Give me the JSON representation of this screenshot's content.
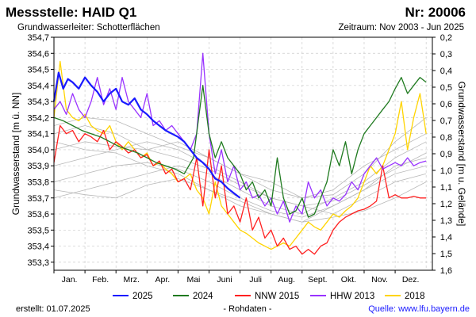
{
  "header": {
    "title": "Messstelle: HAID Q1",
    "number": "Nr: 20006",
    "aquifer": "Grundwasserleiter:   Schotterflächen",
    "period": "Zeitraum: Nov 2003 - Jun 2025"
  },
  "footer": {
    "created": "erstellt:  01.07.2025",
    "rawdata": "- Rohdaten -",
    "source": "Quelle: www.lfu.bayern.de"
  },
  "colors": {
    "2025": "#1a1aff",
    "2024": "#1f7a1f",
    "NNW 2015": "#ff2020",
    "HHW 2013": "#9933ff",
    "2018": "#ffd400",
    "other_years": "#b8b8b8",
    "grid": "#cccccc"
  },
  "chart_data": {
    "type": "line",
    "ylabel": "Grundwasserstand [m ü. NN]",
    "ylabel_right": "Grundwasserstand [m u. Gelände]",
    "ylim": [
      353.25,
      354.7
    ],
    "yticks": [
      353.3,
      353.4,
      353.5,
      353.6,
      353.7,
      353.8,
      353.9,
      354.0,
      354.1,
      354.2,
      354.3,
      354.4,
      354.5,
      354.6,
      354.7
    ],
    "ytick_labels": [
      "353,3",
      "353,4",
      "353,5",
      "353,6",
      "353,7",
      "353,8",
      "353,9",
      "354,0",
      "354,1",
      "354,2",
      "354,3",
      "354,4",
      "354,5",
      "354,6",
      "354,7"
    ],
    "ylim_right": [
      1.6,
      0.2
    ],
    "yticks_right": [
      0.2,
      0.3,
      0.4,
      0.5,
      0.6,
      0.7,
      0.8,
      0.9,
      1.0,
      1.1,
      1.2,
      1.3,
      1.4,
      1.5,
      1.6
    ],
    "ytick_labels_right": [
      "0,2",
      "0,3",
      "0,4",
      "0,5",
      "0,6",
      "0,7",
      "0,8",
      "0,9",
      "1,0",
      "1,1",
      "1,2",
      "1,3",
      "1,4",
      "1,5",
      "1,6"
    ],
    "xlim": [
      0,
      12.2
    ],
    "months": [
      "Jan.",
      "Feb.",
      "Mrz.",
      "Apr.",
      "Mai",
      "Juni",
      "Juli",
      "Aug.",
      "Sept.",
      "Okt.",
      "Nov.",
      "Dez."
    ],
    "legend_position": "bottom",
    "series": [
      {
        "name": "2025",
        "x": [
          0,
          0.15,
          0.3,
          0.45,
          0.6,
          0.8,
          1.0,
          1.2,
          1.4,
          1.6,
          1.8,
          2.0,
          2.2,
          2.4,
          2.6,
          2.8,
          3.0,
          3.2,
          3.4,
          3.6,
          3.8,
          4.0,
          4.2,
          4.4,
          4.6,
          4.8,
          5.0,
          5.2,
          5.4,
          5.6,
          5.8,
          6.0
        ],
        "y": [
          354.3,
          354.48,
          354.38,
          354.44,
          354.42,
          354.38,
          354.45,
          354.4,
          354.36,
          354.3,
          354.35,
          354.38,
          354.3,
          354.28,
          354.32,
          354.25,
          354.22,
          354.18,
          354.15,
          354.12,
          354.1,
          354.08,
          354.05,
          354.0,
          353.95,
          353.92,
          353.88,
          353.82,
          353.8,
          353.76,
          353.73,
          353.7
        ]
      },
      {
        "name": "2024",
        "x": [
          0,
          0.3,
          0.6,
          0.9,
          1.2,
          1.5,
          1.8,
          2.1,
          2.4,
          2.7,
          3.0,
          3.3,
          3.6,
          3.9,
          4.2,
          4.5,
          4.8,
          5.0,
          5.2,
          5.4,
          5.6,
          5.8,
          6.0,
          6.2,
          6.4,
          6.6,
          6.8,
          7.0,
          7.2,
          7.4,
          7.6,
          7.8,
          8.0,
          8.2,
          8.4,
          8.6,
          8.8,
          9.0,
          9.2,
          9.4,
          9.6,
          9.8,
          10.0,
          10.2,
          10.4,
          10.6,
          10.8,
          11.0,
          11.2,
          11.4,
          11.6,
          11.8,
          12.0
        ],
        "y": [
          354.2,
          354.18,
          354.15,
          354.12,
          354.1,
          354.08,
          354.05,
          354.02,
          354.0,
          353.98,
          353.95,
          353.92,
          353.9,
          353.88,
          353.85,
          353.95,
          354.4,
          354.1,
          353.95,
          354.05,
          353.95,
          353.9,
          353.85,
          353.75,
          353.8,
          353.7,
          353.75,
          353.65,
          353.95,
          353.7,
          353.6,
          353.62,
          353.7,
          353.58,
          353.6,
          353.7,
          353.8,
          354.0,
          353.9,
          354.05,
          353.85,
          354.0,
          354.1,
          354.15,
          354.2,
          354.25,
          354.3,
          354.38,
          354.45,
          354.35,
          354.4,
          354.45,
          354.42
        ]
      },
      {
        "name": "NNW 2015",
        "x": [
          0,
          0.2,
          0.4,
          0.6,
          0.8,
          1.0,
          1.2,
          1.4,
          1.6,
          1.8,
          2.0,
          2.2,
          2.4,
          2.6,
          2.8,
          3.0,
          3.2,
          3.4,
          3.6,
          3.8,
          4.0,
          4.2,
          4.4,
          4.6,
          4.8,
          5.0,
          5.2,
          5.4,
          5.6,
          5.8,
          6.0,
          6.2,
          6.4,
          6.6,
          6.8,
          7.0,
          7.2,
          7.4,
          7.6,
          7.8,
          8.0,
          8.2,
          8.4,
          8.6,
          8.8,
          9.0,
          9.2,
          9.4,
          9.6,
          9.8,
          10.0,
          10.2,
          10.4,
          10.6,
          10.8,
          11.0,
          11.2,
          11.4,
          11.6,
          11.8,
          12.0
        ],
        "y": [
          353.92,
          354.15,
          354.1,
          354.12,
          354.05,
          354.1,
          354.08,
          354.05,
          354.12,
          354.0,
          354.05,
          354.02,
          353.98,
          354.0,
          353.95,
          353.97,
          353.9,
          353.93,
          353.85,
          353.88,
          353.8,
          353.82,
          353.75,
          353.95,
          353.65,
          354.0,
          353.7,
          353.9,
          353.6,
          353.65,
          353.55,
          353.7,
          353.5,
          353.58,
          353.45,
          353.5,
          353.4,
          353.45,
          353.38,
          353.4,
          353.35,
          353.38,
          353.35,
          353.4,
          353.42,
          353.5,
          353.55,
          353.58,
          353.6,
          353.62,
          353.63,
          353.65,
          353.68,
          353.9,
          353.7,
          353.72,
          353.7,
          353.7,
          353.71,
          353.7,
          353.7
        ]
      },
      {
        "name": "HHW 2013",
        "x": [
          0,
          0.2,
          0.4,
          0.6,
          0.8,
          1.0,
          1.2,
          1.4,
          1.6,
          1.8,
          2.0,
          2.2,
          2.4,
          2.6,
          2.8,
          3.0,
          3.2,
          3.4,
          3.6,
          3.8,
          4.0,
          4.2,
          4.4,
          4.6,
          4.8,
          5.0,
          5.2,
          5.4,
          5.6,
          5.8,
          6.0,
          6.2,
          6.4,
          6.6,
          6.8,
          7.0,
          7.2,
          7.4,
          7.6,
          7.8,
          8.0,
          8.2,
          8.4,
          8.6,
          8.8,
          9.0,
          9.2,
          9.4,
          9.6,
          9.8,
          10.0,
          10.2,
          10.4,
          10.6,
          10.8,
          11.0,
          11.2,
          11.4,
          11.6,
          11.8,
          12.0
        ],
        "y": [
          354.25,
          354.3,
          354.22,
          354.35,
          354.25,
          354.2,
          354.3,
          354.45,
          354.28,
          354.38,
          354.25,
          354.45,
          354.3,
          354.25,
          354.2,
          354.35,
          354.15,
          354.18,
          354.12,
          354.15,
          354.1,
          354.05,
          354.0,
          354.1,
          354.6,
          354.1,
          353.85,
          354.0,
          353.8,
          353.9,
          353.75,
          353.8,
          353.7,
          353.72,
          353.65,
          353.7,
          353.6,
          353.68,
          353.55,
          353.65,
          353.6,
          353.8,
          353.7,
          353.75,
          353.65,
          353.7,
          353.68,
          353.72,
          353.8,
          353.75,
          353.85,
          353.9,
          353.95,
          353.88,
          353.9,
          353.92,
          353.9,
          353.95,
          353.9,
          353.92,
          353.93
        ]
      },
      {
        "name": "2018",
        "x": [
          0,
          0.2,
          0.4,
          0.6,
          0.8,
          1.0,
          1.2,
          1.4,
          1.6,
          1.8,
          2.0,
          2.2,
          2.4,
          2.6,
          2.8,
          3.0,
          3.2,
          3.4,
          3.6,
          3.8,
          4.0,
          4.2,
          4.4,
          4.6,
          4.8,
          5.0,
          5.2,
          5.4,
          5.6,
          5.8,
          6.0,
          6.2,
          6.4,
          6.6,
          6.8,
          7.0,
          7.2,
          7.4,
          7.6,
          7.8,
          8.0,
          8.2,
          8.4,
          8.6,
          8.8,
          9.0,
          9.2,
          9.4,
          9.6,
          9.8,
          10.0,
          10.2,
          10.4,
          10.6,
          10.8,
          11.0,
          11.2,
          11.4,
          11.6,
          11.8,
          12.0
        ],
        "y": [
          354.2,
          354.55,
          354.25,
          354.2,
          354.18,
          354.22,
          354.15,
          354.12,
          354.1,
          354.15,
          354.05,
          354.0,
          354.05,
          354.0,
          353.95,
          353.98,
          353.9,
          353.92,
          353.88,
          353.85,
          353.8,
          353.82,
          353.85,
          353.75,
          353.7,
          353.6,
          353.8,
          353.65,
          353.6,
          353.55,
          353.5,
          353.48,
          353.45,
          353.42,
          353.4,
          353.38,
          353.4,
          353.42,
          353.4,
          353.45,
          353.5,
          353.55,
          353.52,
          353.5,
          353.55,
          353.6,
          353.58,
          353.62,
          353.65,
          353.7,
          353.8,
          353.9,
          353.85,
          353.9,
          354.0,
          354.1,
          354.3,
          354.0,
          354.2,
          354.35,
          354.1
        ]
      },
      {
        "name": "",
        "x": [
          0,
          1,
          2,
          3,
          4,
          5,
          6,
          7,
          8,
          9,
          10,
          11,
          12
        ],
        "y": [
          354.05,
          354.0,
          353.98,
          353.9,
          353.85,
          353.75,
          353.65,
          353.6,
          353.55,
          353.65,
          353.75,
          353.85,
          353.9
        ]
      },
      {
        "name": "",
        "x": [
          0,
          1,
          2,
          3,
          4,
          5,
          6,
          7,
          8,
          9,
          10,
          11,
          12
        ],
        "y": [
          353.7,
          353.75,
          353.8,
          353.85,
          353.9,
          353.85,
          353.75,
          353.65,
          353.6,
          353.7,
          353.8,
          353.95,
          354.05
        ]
      },
      {
        "name": "",
        "x": [
          0,
          1,
          2,
          3,
          4,
          5,
          6,
          7,
          8,
          9,
          10,
          11,
          12
        ],
        "y": [
          354.1,
          354.15,
          354.1,
          354.0,
          354.05,
          353.95,
          353.85,
          353.8,
          353.7,
          353.75,
          353.9,
          354.0,
          354.1
        ]
      },
      {
        "name": "",
        "x": [
          0,
          1,
          2,
          3,
          4,
          5,
          6,
          7,
          8,
          9,
          10,
          11,
          12
        ],
        "y": [
          353.9,
          353.95,
          354.0,
          354.05,
          354.0,
          353.9,
          353.8,
          353.7,
          353.65,
          353.6,
          353.7,
          353.8,
          353.85
        ]
      },
      {
        "name": "",
        "x": [
          0,
          1,
          2,
          3,
          4,
          5,
          6,
          7,
          8,
          9,
          10,
          11,
          12
        ],
        "y": [
          354.15,
          354.2,
          354.18,
          354.1,
          354.02,
          353.95,
          353.85,
          353.75,
          353.7,
          353.72,
          353.85,
          354.05,
          354.2
        ]
      },
      {
        "name": "",
        "x": [
          0,
          1,
          2,
          3,
          4,
          5,
          6,
          7,
          8,
          9,
          10,
          11,
          12
        ],
        "y": [
          353.8,
          353.85,
          353.9,
          353.92,
          353.88,
          353.8,
          353.7,
          353.62,
          353.58,
          353.65,
          353.75,
          353.9,
          353.95
        ]
      },
      {
        "name": "",
        "x": [
          0,
          1,
          2,
          3,
          4,
          5,
          6,
          7,
          8,
          9,
          10,
          11,
          12
        ],
        "y": [
          354.0,
          354.05,
          354.02,
          354.0,
          353.95,
          353.88,
          353.78,
          353.7,
          353.65,
          353.68,
          353.78,
          353.88,
          353.98
        ]
      },
      {
        "name": "",
        "x": [
          0,
          1,
          2,
          3,
          4,
          5,
          6,
          7,
          8,
          9,
          10,
          11,
          12
        ],
        "y": [
          353.75,
          353.72,
          353.7,
          353.78,
          353.82,
          353.75,
          353.68,
          353.6,
          353.55,
          353.58,
          353.62,
          353.7,
          353.8
        ]
      }
    ]
  }
}
